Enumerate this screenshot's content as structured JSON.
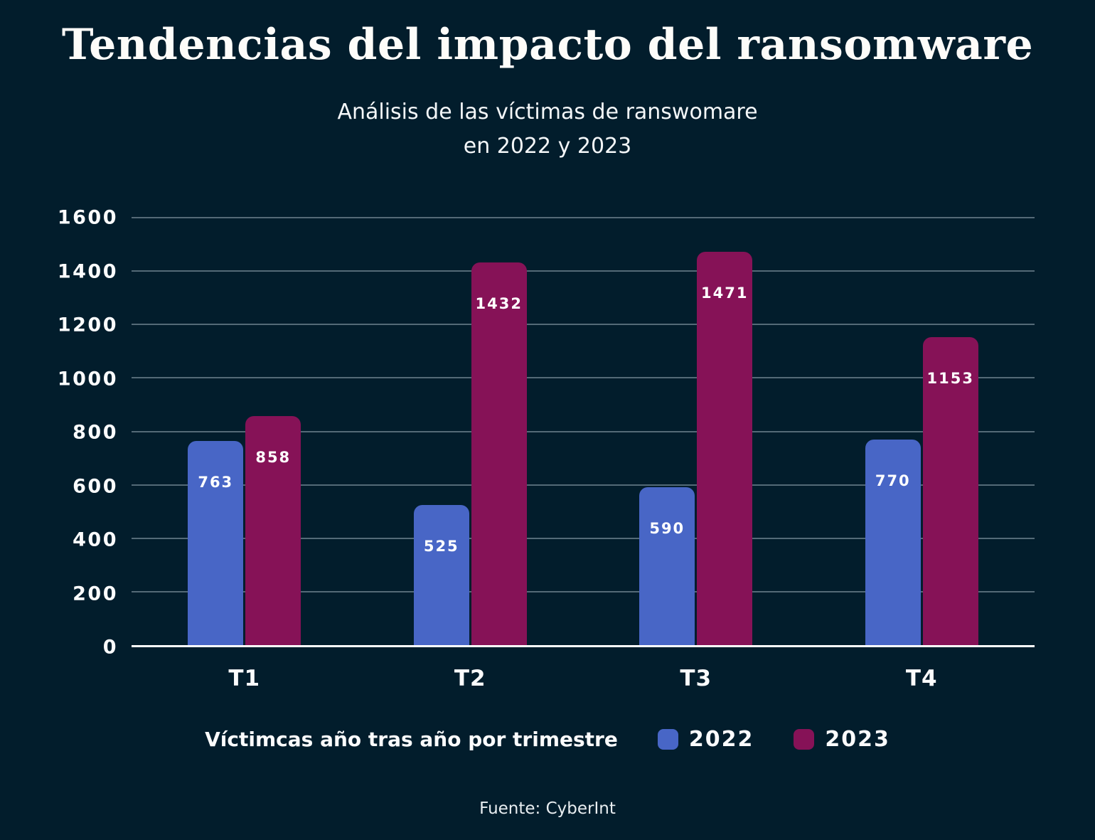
{
  "page": {
    "title": "Tendencias del impacto del ransomware",
    "subtitle_line1": "Análisis de las víctimas de ranswomare",
    "subtitle_line2": "en 2022 y 2023",
    "footer": "Fuente: CyberInt",
    "background_color": "#021d2c"
  },
  "legend": {
    "label": "Víctimcas año tras año por trimestre",
    "items": [
      {
        "name": "2022",
        "color": "#4866c6"
      },
      {
        "name": "2023",
        "color": "#861257"
      }
    ]
  },
  "chart_data": {
    "type": "bar",
    "categories": [
      "T1",
      "T2",
      "T3",
      "T4"
    ],
    "series": [
      {
        "name": "2022",
        "color": "#4866c6",
        "values": [
          763,
          525,
          590,
          770
        ]
      },
      {
        "name": "2023",
        "color": "#861257",
        "values": [
          858,
          1432,
          1471,
          1153
        ]
      }
    ],
    "title": "Tendencias del impacto del ransomware",
    "subtitle": "Análisis de las víctimas de ranswomare en 2022 y 2023",
    "xlabel": "",
    "ylabel": "",
    "ylim": [
      0,
      1600
    ],
    "yticks": [
      0,
      200,
      400,
      600,
      800,
      1000,
      1200,
      1400,
      1600
    ],
    "grid": true,
    "bar_value_labels": true,
    "legend_position": "bottom",
    "gridline_color": "rgba(198,214,224,0.42)",
    "axis_line_color": "#ffffff",
    "source": "Fuente: CyberInt"
  }
}
